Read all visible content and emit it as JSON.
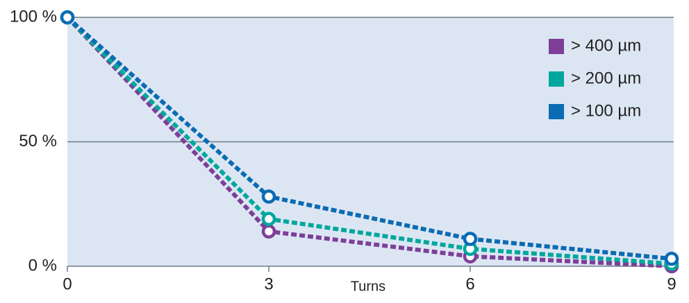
{
  "chart_data": {
    "type": "line",
    "x_label": "Turns",
    "x": [
      0,
      3,
      6,
      9
    ],
    "series": [
      {
        "name": "> 400 µm",
        "color": "#7d3f98",
        "values": [
          100,
          14,
          4,
          0
        ]
      },
      {
        "name": "> 200 µm",
        "color": "#00a79d",
        "values": [
          100,
          19,
          7,
          1
        ]
      },
      {
        "name": "> 100 µm",
        "color": "#0b6bb3",
        "values": [
          100,
          28,
          11,
          3
        ]
      }
    ],
    "xlim": [
      0,
      9
    ],
    "xticks": [
      0,
      3,
      6,
      9
    ],
    "ylim": [
      0,
      100
    ],
    "yticks": [
      {
        "value": 0,
        "label": "0 %"
      },
      {
        "value": 50,
        "label": "50 %"
      },
      {
        "value": 100,
        "label": "100 %"
      }
    ],
    "grid": true,
    "legend": "top-right",
    "background": "#dce6f3"
  }
}
